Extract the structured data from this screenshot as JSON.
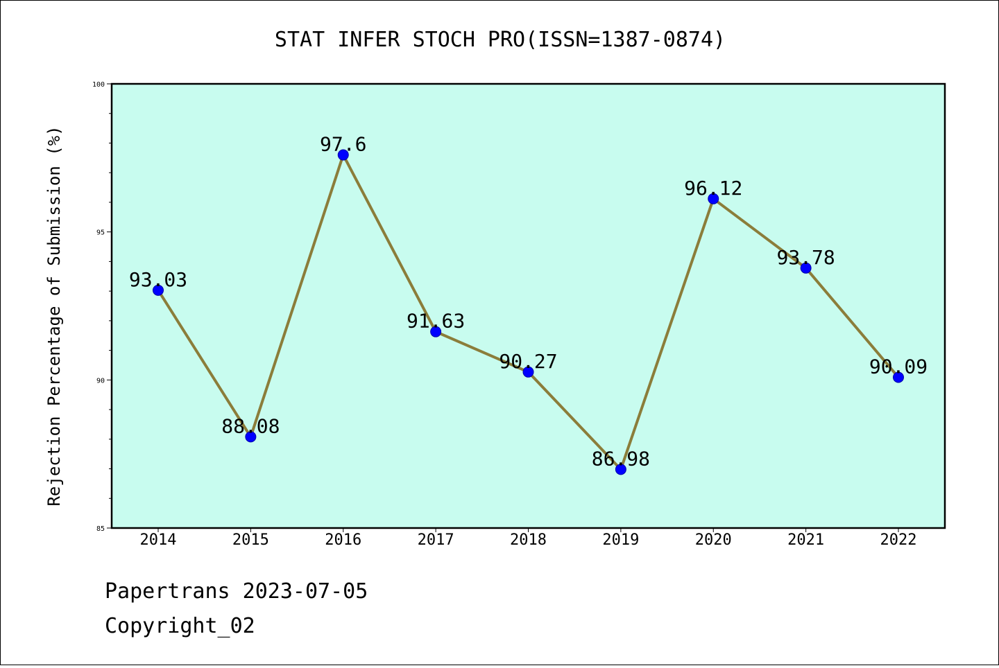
{
  "chart_data": {
    "type": "line",
    "title": "STAT INFER STOCH PRO(ISSN=1387-0874)",
    "xlabel": "",
    "ylabel": "Rejection Percentage of Submission (%)",
    "categories": [
      "2014",
      "2015",
      "2016",
      "2017",
      "2018",
      "2019",
      "2020",
      "2021",
      "2022"
    ],
    "values": [
      93.03,
      88.08,
      97.6,
      91.63,
      90.27,
      86.98,
      96.12,
      93.78,
      90.09
    ],
    "data_labels": [
      "93.03",
      "88.08",
      "97.6",
      "91.63",
      "90.27",
      "86.98",
      "96.12",
      "93.78",
      "90.09"
    ],
    "ylim": [
      85,
      100
    ],
    "yticks": [
      85,
      90,
      95,
      100
    ],
    "grid": false,
    "colors": {
      "plot_background": "#c8fcef",
      "line": "#8b7d3a",
      "marker": "#0000ff"
    }
  },
  "footer": {
    "line1": "Papertrans 2023-07-05",
    "line2": "Copyright_02"
  }
}
